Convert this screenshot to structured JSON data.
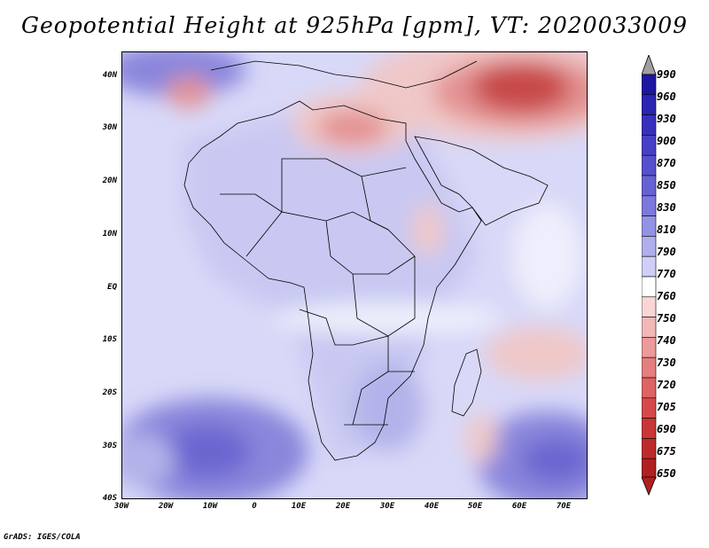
{
  "title": "Geopotential Height at 925hPa [gpm], VT: 2020033009",
  "footer": "GrADS: IGES/COLA",
  "map": {
    "lat_labels": [
      "40N",
      "30N",
      "20N",
      "10N",
      "EQ",
      "10S",
      "20S",
      "30S",
      "40S"
    ],
    "lon_labels": [
      "30W",
      "20W",
      "10W",
      "0",
      "10E",
      "20E",
      "30E",
      "40E",
      "50E",
      "60E",
      "70E"
    ],
    "lat_range": [
      -40,
      44
    ],
    "lon_range": [
      -30,
      75
    ]
  },
  "legend": {
    "levels": [
      "990",
      "960",
      "930",
      "900",
      "870",
      "850",
      "830",
      "810",
      "790",
      "770",
      "760",
      "750",
      "740",
      "730",
      "720",
      "705",
      "690",
      "675",
      "650"
    ],
    "colors": {
      "top_arrow": "#a0a0a0",
      "blues": [
        "#1e16a0",
        "#2a24b0",
        "#3830bc",
        "#4640c6",
        "#5650ce",
        "#6762d4",
        "#7c78dc",
        "#9492e4",
        "#b0aeec",
        "#cfcef5"
      ],
      "white": "#ffffff",
      "reds": [
        "#f8d6d6",
        "#f2b8b8",
        "#ec9a9a",
        "#e57e7e",
        "#dd6464",
        "#d44a4a",
        "#c93636",
        "#bc2a2a",
        "#b02020"
      ]
    }
  },
  "field_colors": {
    "ocean_base": "#d8d8f8",
    "land_base": "#c8c8f2",
    "low_light": "#f0c8c8",
    "low_mid": "#e39292",
    "low_deep": "#c84848",
    "high_light": "#b4b2ea",
    "high_mid": "#8a86dc",
    "high_deep": "#6a66d0"
  }
}
